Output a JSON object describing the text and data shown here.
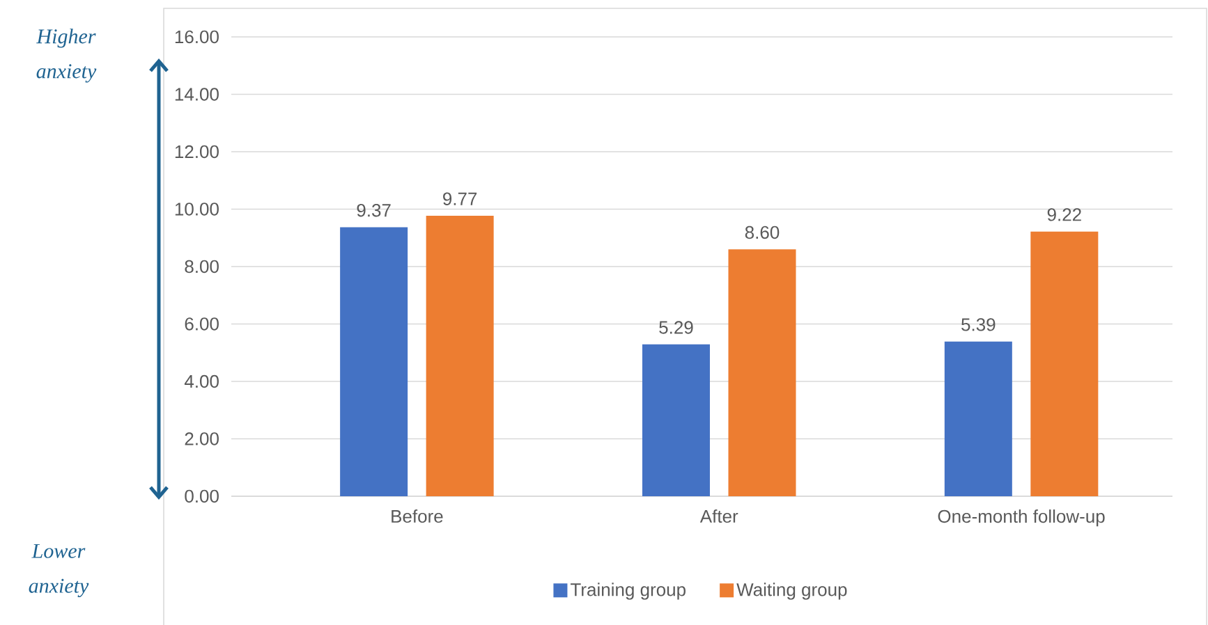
{
  "chart_data": {
    "type": "bar",
    "categories": [
      "Before",
      "After",
      "One-month follow-up"
    ],
    "series": [
      {
        "name": "Training group",
        "color": "#4472c4",
        "values": [
          9.37,
          5.29,
          5.39
        ],
        "value_labels": [
          "9.37",
          "5.29",
          "5.39"
        ]
      },
      {
        "name": "Waiting group",
        "color": "#ed7d31",
        "values": [
          9.77,
          8.6,
          9.22
        ],
        "value_labels": [
          "9.77",
          "8.60",
          "9.22"
        ]
      }
    ],
    "ylim": [
      0,
      16
    ],
    "yticks": [
      {
        "value": 0,
        "label": "0.00"
      },
      {
        "value": 2,
        "label": "2.00"
      },
      {
        "value": 4,
        "label": "4.00"
      },
      {
        "value": 6,
        "label": "6.00"
      },
      {
        "value": 8,
        "label": "8.00"
      },
      {
        "value": 10,
        "label": "10.00"
      },
      {
        "value": 12,
        "label": "12.00"
      },
      {
        "value": 14,
        "label": "14.00"
      },
      {
        "value": 16,
        "label": "16.00"
      }
    ],
    "grid": "y",
    "legend": "bottom",
    "annotations": [
      "Higher anxiety",
      "Lower anxiety"
    ]
  }
}
